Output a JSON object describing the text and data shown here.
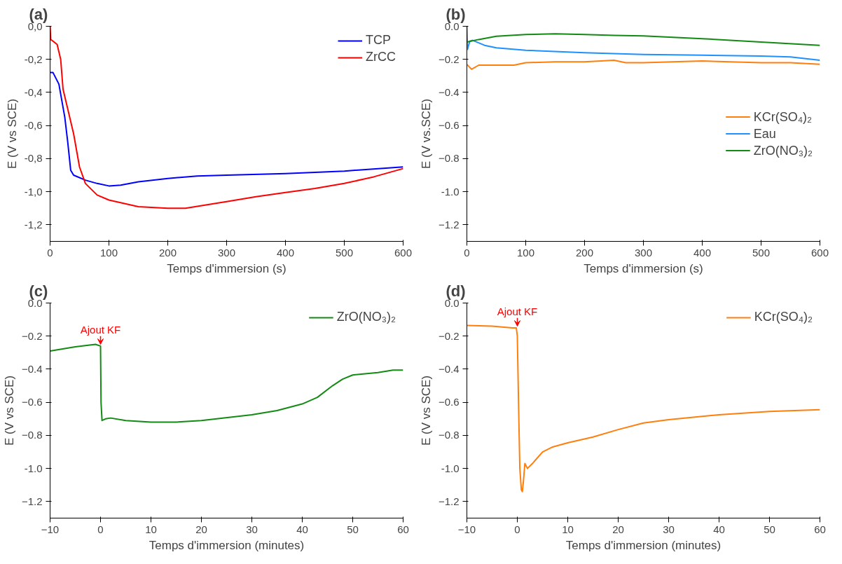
{
  "chart_data": [
    {
      "type": "line",
      "title": "(a)",
      "xlabel": "Temps d'immersion (s)",
      "ylabel": "E (V vs SCE)",
      "xlim": [
        0,
        600
      ],
      "xticks": [
        0,
        100,
        200,
        300,
        400,
        500,
        600
      ],
      "ylim": [
        -1.3,
        0
      ],
      "yticks": [
        {
          "value": 0,
          "label": "0,0"
        },
        {
          "value": -0.2,
          "label": "-0,2"
        },
        {
          "value": -0.4,
          "label": "-0,4"
        },
        {
          "value": -0.6,
          "label": "-0,6"
        },
        {
          "value": -0.8,
          "label": "-0,8"
        },
        {
          "value": -1.0,
          "label": "-1,0"
        },
        {
          "value": -1.2,
          "label": "-1,2"
        }
      ],
      "grid": false,
      "legend": "top right",
      "series": [
        {
          "name": "TCP",
          "color": "#0000ff",
          "x": [
            0,
            5,
            15,
            25,
            30,
            35,
            40,
            60,
            80,
            100,
            120,
            150,
            200,
            250,
            300,
            400,
            500,
            600
          ],
          "values": [
            -0.28,
            -0.28,
            -0.35,
            -0.55,
            -0.7,
            -0.87,
            -0.9,
            -0.93,
            -0.95,
            -0.965,
            -0.96,
            -0.94,
            -0.92,
            -0.905,
            -0.9,
            -0.89,
            -0.875,
            -0.85
          ]
        },
        {
          "name": "ZrCC",
          "color": "#ff0000",
          "x": [
            0,
            1,
            5,
            12,
            18,
            22,
            30,
            40,
            50,
            60,
            80,
            100,
            150,
            200,
            230,
            300,
            350,
            400,
            450,
            500,
            550,
            600
          ],
          "values": [
            0.0,
            -0.08,
            -0.09,
            -0.11,
            -0.2,
            -0.38,
            -0.5,
            -0.65,
            -0.85,
            -0.95,
            -1.02,
            -1.05,
            -1.09,
            -1.1,
            -1.1,
            -1.06,
            -1.03,
            -1.005,
            -0.98,
            -0.95,
            -0.91,
            -0.86
          ]
        }
      ]
    },
    {
      "type": "line",
      "title": "(b)",
      "xlabel": "Temps d'immersion (s)",
      "ylabel": "E (V vs.SCE)",
      "xlim": [
        0,
        600
      ],
      "xticks": [
        0,
        100,
        200,
        300,
        400,
        500,
        600
      ],
      "ylim": [
        -1.3,
        0
      ],
      "yticks": [
        {
          "value": 0,
          "label": "0.0"
        },
        -0.2,
        -0.4,
        -0.6,
        -0.8,
        {
          "value": -1.0,
          "label": "-1.0"
        },
        -1.2
      ],
      "grid": false,
      "legend": "right",
      "series": [
        {
          "name": "KCr(SO₄)₂",
          "color": "#ff7f0e",
          "x": [
            0,
            8,
            20,
            50,
            80,
            100,
            150,
            200,
            250,
            270,
            300,
            400,
            500,
            550,
            600
          ],
          "values": [
            -0.23,
            -0.26,
            -0.235,
            -0.235,
            -0.235,
            -0.22,
            -0.215,
            -0.215,
            -0.205,
            -0.22,
            -0.22,
            -0.21,
            -0.22,
            -0.22,
            -0.23
          ]
        },
        {
          "name": "Eau",
          "color": "#1e90ff",
          "x": [
            0,
            1,
            5,
            10,
            30,
            50,
            100,
            200,
            300,
            400,
            500,
            550,
            600
          ],
          "values": [
            0.0,
            -0.14,
            -0.09,
            -0.085,
            -0.115,
            -0.13,
            -0.145,
            -0.16,
            -0.17,
            -0.175,
            -0.18,
            -0.185,
            -0.205
          ]
        },
        {
          "name": "ZrO(NO₃)₂",
          "color": "#138a13",
          "x": [
            0,
            20,
            50,
            100,
            150,
            200,
            250,
            300,
            400,
            500,
            600
          ],
          "values": [
            -0.095,
            -0.08,
            -0.06,
            -0.05,
            -0.045,
            -0.05,
            -0.055,
            -0.058,
            -0.075,
            -0.095,
            -0.115
          ]
        }
      ]
    },
    {
      "type": "line",
      "title": "(c)",
      "xlabel": "Temps d'immersion (minutes)",
      "ylabel": "E (V vs SCE)",
      "xlim": [
        -10,
        60
      ],
      "xticks": [
        -10,
        0,
        10,
        20,
        30,
        40,
        50,
        60
      ],
      "ylim": [
        -1.3,
        0
      ],
      "yticks": [
        {
          "value": 0,
          "label": "0.0"
        },
        -0.2,
        -0.4,
        -0.6,
        -0.8,
        {
          "value": -1.0,
          "label": "-1.0"
        },
        -1.2
      ],
      "grid": false,
      "legend": "top right",
      "annotations": [
        {
          "text": "Ajout KF",
          "x": 0,
          "y": -0.25
        }
      ],
      "series": [
        {
          "name": "ZrO(NO₃)₂",
          "color": "#138a13",
          "x": [
            -10,
            -5,
            -1,
            0,
            0.1,
            0.3,
            1,
            2,
            5,
            10,
            15,
            20,
            30,
            35,
            40,
            43,
            46,
            48,
            50,
            55,
            58,
            60
          ],
          "values": [
            -0.29,
            -0.265,
            -0.25,
            -0.26,
            -0.6,
            -0.71,
            -0.7,
            -0.695,
            -0.71,
            -0.72,
            -0.72,
            -0.71,
            -0.675,
            -0.65,
            -0.61,
            -0.57,
            -0.5,
            -0.46,
            -0.435,
            -0.42,
            -0.405,
            -0.405
          ]
        }
      ]
    },
    {
      "type": "line",
      "title": "(d)",
      "xlabel": "Temps d'immersion (minutes)",
      "ylabel": "E (V vs SCE)",
      "xlim": [
        -10,
        60
      ],
      "xticks": [
        -10,
        0,
        10,
        20,
        30,
        40,
        50,
        60
      ],
      "ylim": [
        -1.3,
        0
      ],
      "yticks": [
        {
          "value": 0,
          "label": "0.0"
        },
        -0.2,
        -0.4,
        -0.6,
        -0.8,
        {
          "value": -1.0,
          "label": "-1.0"
        },
        -1.2
      ],
      "grid": false,
      "legend": "top right",
      "annotations": [
        {
          "text": "Ajout KF",
          "x": 0,
          "y": -0.14
        }
      ],
      "series": [
        {
          "name": "KCr(SO₄)₂",
          "color": "#ff7f0e",
          "x": [
            -10,
            -5,
            -1,
            -0.2,
            0,
            0.3,
            0.5,
            0.8,
            1,
            1.2,
            1.5,
            2,
            3,
            5,
            7,
            10,
            15,
            20,
            25,
            30,
            40,
            50,
            60
          ],
          "values": [
            -0.135,
            -0.14,
            -0.15,
            -0.15,
            -0.2,
            -0.7,
            -1.0,
            -1.13,
            -1.14,
            -1.08,
            -0.97,
            -1.0,
            -0.97,
            -0.9,
            -0.87,
            -0.845,
            -0.81,
            -0.765,
            -0.725,
            -0.705,
            -0.675,
            -0.655,
            -0.645
          ]
        }
      ]
    }
  ]
}
